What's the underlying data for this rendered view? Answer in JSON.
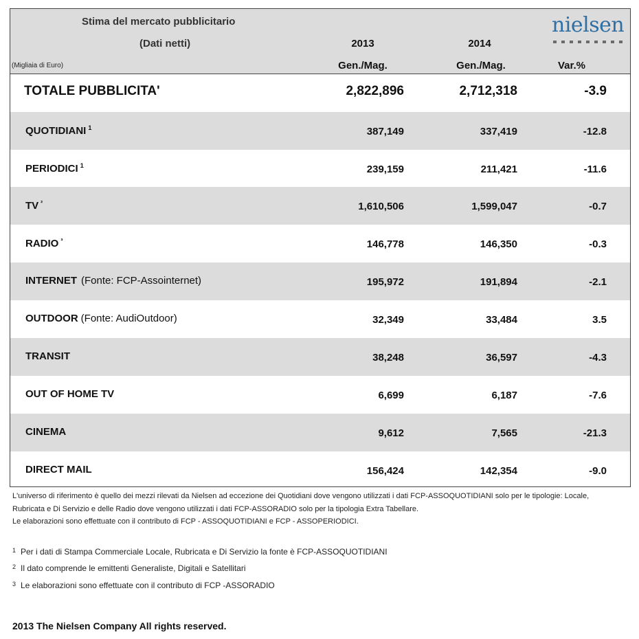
{
  "header": {
    "title": "Stima del mercato pubblicitario",
    "subtitle": "(Dati netti)",
    "units": "(Migliaia di Euro)",
    "year1": "2013",
    "year2": "2014",
    "period1": "Gen./Mag.",
    "period2": "Gen./Mag.",
    "var_label": "Var.%",
    "logo": "nielsen"
  },
  "rows": [
    {
      "label": "TOTALE PUBBLICITA'",
      "sup": "",
      "source": "",
      "v2013": "2,822,896",
      "v2014": "2,712,318",
      "var": "-3.9"
    },
    {
      "label": "QUOTIDIANI",
      "sup": "1",
      "source": "",
      "v2013": "387,149",
      "v2014": "337,419",
      "var": "-12.8"
    },
    {
      "label": "PERIODICI",
      "sup": "1",
      "source": "",
      "v2013": "239,159",
      "v2014": "211,421",
      "var": "-11.6"
    },
    {
      "label": "TV",
      "sup": "²",
      "source": "",
      "v2013": "1,610,506",
      "v2014": "1,599,047",
      "var": "-0.7"
    },
    {
      "label": "RADIO",
      "sup": "³",
      "source": "",
      "v2013": "146,778",
      "v2014": "146,350",
      "var": "-0.3"
    },
    {
      "label": "INTERNET",
      "sup": "",
      "source": "(Fonte: FCP-Assointernet)",
      "v2013": "195,972",
      "v2014": "191,894",
      "var": "-2.1"
    },
    {
      "label": "OUTDOOR",
      "sup": "",
      "source": "(Fonte: AudiOutdoor)",
      "v2013": "32,349",
      "v2014": "33,484",
      "var": "3.5"
    },
    {
      "label": "TRANSIT",
      "sup": "",
      "source": "",
      "v2013": "38,248",
      "v2014": "36,597",
      "var": "-4.3"
    },
    {
      "label": "OUT OF HOME TV",
      "sup": "",
      "source": "",
      "v2013": "6,699",
      "v2014": "6,187",
      "var": "-7.6"
    },
    {
      "label": "CINEMA",
      "sup": "",
      "source": "",
      "v2013": "9,612",
      "v2014": "7,565",
      "var": "-21.3"
    },
    {
      "label": "DIRECT MAIL",
      "sup": "",
      "source": "",
      "v2013": "156,424",
      "v2014": "142,354",
      "var": "-9.0"
    }
  ],
  "notes": {
    "line1": "L'universo di riferimento è quello dei mezzi rilevati da Nielsen ad eccezione dei Quotidiani dove vengono utilizzati i dati FCP-ASSOQUOTIDIANI solo per le tipologie: Locale,",
    "line2": "Rubricata e Di Servizio e delle Radio dove vengono utilizzati i dati FCP-ASSORADIO solo per la tipologia Extra Tabellare.",
    "line3": "Le elaborazioni sono effettuate con il contributo di FCP - ASSOQUOTIDIANI e FCP - ASSOPERIODICI."
  },
  "footnotes": [
    {
      "mark": "1",
      "text": "Per i dati di Stampa Commerciale Locale, Rubricata e Di Servizio la fonte è  FCP-ASSOQUOTIDIANI"
    },
    {
      "mark": "2",
      "text": "Il dato comprende le emittenti Generaliste, Digitali e Satellitari"
    },
    {
      "mark": "3",
      "text": "Le elaborazioni sono effettuate con il contributo di FCP -ASSORADIO"
    }
  ],
  "copyright": "2013 The Nielsen Company All rights reserved."
}
